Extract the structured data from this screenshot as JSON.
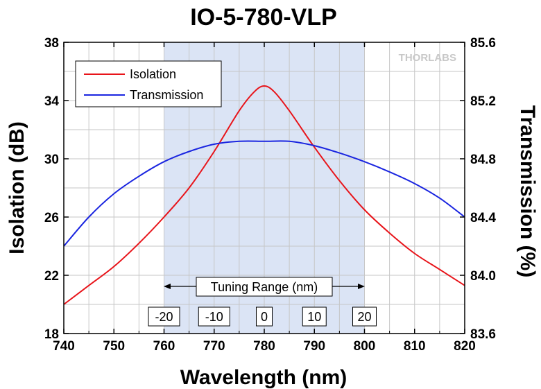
{
  "chart_data": {
    "type": "line",
    "title": "IO-5-780-VLP",
    "xlabel": "Wavelength (nm)",
    "ylabel": "Isolation (dB)",
    "y2label": "Transmission (%)",
    "xlim": [
      740,
      820
    ],
    "ylim": [
      18,
      38
    ],
    "y2lim": [
      83.6,
      85.6
    ],
    "x_ticks": [
      "740",
      "750",
      "760",
      "770",
      "780",
      "790",
      "800",
      "810",
      "820"
    ],
    "y_ticks": [
      "18",
      "22",
      "26",
      "30",
      "34",
      "38"
    ],
    "y2_ticks": [
      "83.6",
      "84.0",
      "84.4",
      "84.8",
      "85.2",
      "85.6"
    ],
    "grid": true,
    "legend_placement": "top-left",
    "shaded_region": {
      "x": [
        760,
        800
      ],
      "color": "#dbe4f5"
    },
    "series": [
      {
        "name": "Isolation",
        "axis": "left",
        "color": "#e8141a",
        "x": [
          740,
          745,
          750,
          755,
          760,
          765,
          770,
          775,
          778,
          780,
          782,
          785,
          790,
          795,
          800,
          805,
          810,
          815,
          820
        ],
        "values": [
          20.0,
          21.3,
          22.6,
          24.2,
          26.0,
          28.0,
          30.5,
          33.3,
          34.6,
          35.0,
          34.6,
          33.3,
          30.8,
          28.5,
          26.5,
          24.9,
          23.5,
          22.4,
          21.3
        ]
      },
      {
        "name": "Transmission",
        "axis": "right",
        "color": "#1a25e0",
        "x": [
          740,
          745,
          750,
          755,
          760,
          765,
          770,
          775,
          780,
          785,
          790,
          795,
          800,
          805,
          810,
          815,
          820
        ],
        "values": [
          84.2,
          84.4,
          84.56,
          84.68,
          84.78,
          84.85,
          84.9,
          84.92,
          84.92,
          84.92,
          84.89,
          84.84,
          84.78,
          84.71,
          84.63,
          84.53,
          84.4
        ]
      }
    ],
    "annotation": {
      "label": "Tuning Range (nm)",
      "ticks": [
        {
          "x": 760,
          "label": "-20"
        },
        {
          "x": 770,
          "label": "-10"
        },
        {
          "x": 780,
          "label": "0"
        },
        {
          "x": 790,
          "label": "10"
        },
        {
          "x": 800,
          "label": "20"
        }
      ]
    },
    "watermark": "THORLABS"
  }
}
